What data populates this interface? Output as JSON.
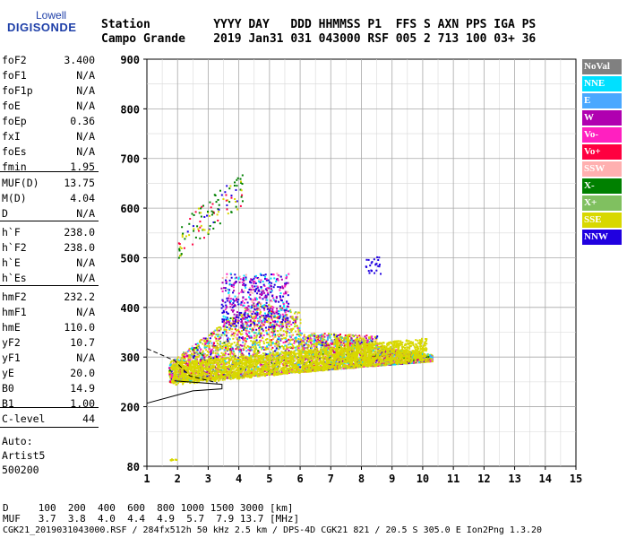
{
  "logo": {
    "top": "Lowell",
    "main": "DIGISONDE"
  },
  "header": {
    "line1": "Station         YYYY DAY   DDD HHMMSS P1  FFS S AXN PPS IGA PS",
    "line2": "Campo Grande    2019 Jan31 031 043000 RSF 005 2 713 100 03+ 36"
  },
  "params": [
    {
      "k": "foF2",
      "v": "3.400"
    },
    {
      "k": "foF1",
      "v": "N/A"
    },
    {
      "k": "foF1p",
      "v": "N/A"
    },
    {
      "k": "foE",
      "v": "N/A"
    },
    {
      "k": "foEp",
      "v": "0.36"
    },
    {
      "k": "fxI",
      "v": "N/A"
    },
    {
      "k": "foEs",
      "v": "N/A"
    },
    {
      "k": "fmin",
      "v": "1.95"
    },
    {
      "k": "MUF(D)",
      "v": "13.75"
    },
    {
      "k": "M(D)",
      "v": "4.04"
    },
    {
      "k": "D",
      "v": "N/A"
    },
    {
      "k": "h`F",
      "v": "238.0"
    },
    {
      "k": "h`F2",
      "v": "238.0"
    },
    {
      "k": "h`E",
      "v": "N/A"
    },
    {
      "k": "h`Es",
      "v": "N/A"
    },
    {
      "k": "hmF2",
      "v": "232.2"
    },
    {
      "k": "hmF1",
      "v": "N/A"
    },
    {
      "k": "hmE",
      "v": "110.0"
    },
    {
      "k": "yF2",
      "v": "10.7"
    },
    {
      "k": "yF1",
      "v": "N/A"
    },
    {
      "k": "yE",
      "v": "20.0"
    },
    {
      "k": "B0",
      "v": "14.9"
    },
    {
      "k": "B1",
      "v": "1.00"
    },
    {
      "k": "C-level",
      "v": "44"
    }
  ],
  "auto": {
    "l1": "Auto:",
    "l2": "Artist5",
    "l3": "500200"
  },
  "legend": [
    {
      "label": "NoVal",
      "color": "#808080"
    },
    {
      "label": "NNE",
      "color": "#00e0ff"
    },
    {
      "label": "E",
      "color": "#4aa8ff"
    },
    {
      "label": "W",
      "color": "#b000b0"
    },
    {
      "label": "Vo-",
      "color": "#ff20c0"
    },
    {
      "label": "Vo+",
      "color": "#ff0040"
    },
    {
      "label": "SSW",
      "color": "#ffb0b0"
    },
    {
      "label": "X-",
      "color": "#008000"
    },
    {
      "label": "X+",
      "color": "#80c060"
    },
    {
      "label": "SSE",
      "color": "#d8d800"
    },
    {
      "label": "NNW",
      "color": "#2000e0"
    }
  ],
  "chart_data": {
    "type": "scatter",
    "xlim": [
      1,
      15
    ],
    "ylim": [
      80,
      900
    ],
    "xticks": [
      "1",
      "2",
      "3",
      "4",
      "5",
      "6",
      "7",
      "8",
      "9",
      "10",
      "11",
      "12",
      "13",
      "14",
      "15"
    ],
    "yticks": [
      "80",
      "200",
      "300",
      "400",
      "500",
      "600",
      "700",
      "800",
      "900"
    ],
    "grid": true
  },
  "footer": {
    "line1": "D     100  200  400  600  800 1000 1500 3000 [km]",
    "line2": "MUF   3.7  3.8  4.0  4.4  4.9  5.7  7.9 13.7 [MHz]",
    "line3": "CGK21_2019031043000.RSF / 284fx512h 50 kHz 2.5 km / DPS-4D CGK21 821 / 20.5 S 305.0 E Ion2Png 1.3.20"
  }
}
